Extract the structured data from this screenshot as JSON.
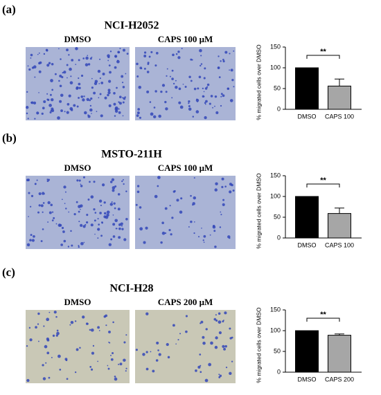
{
  "panels": [
    {
      "label": "(a)",
      "title": "NCI-H2052",
      "images": [
        "DMSO",
        "CAPS 100 μM"
      ]
    },
    {
      "label": "(b)",
      "title": "MSTO-211H",
      "images": [
        "DMSO",
        "CAPS 100 μM"
      ]
    },
    {
      "label": "(c)",
      "title": "NCI-H28",
      "images": [
        "DMSO",
        "CAPS 200 μM"
      ]
    }
  ],
  "chart_data": [
    {
      "type": "bar",
      "ylabel": "% migrated cells over DMSO",
      "categories": [
        "DMSO",
        "CAPS 100"
      ],
      "values": [
        100,
        56
      ],
      "errors": [
        0,
        17
      ],
      "colors": [
        "#000000",
        "#a6a6a6"
      ],
      "ylim": [
        0,
        150
      ],
      "yticks": [
        0,
        50,
        100,
        150
      ],
      "annotation": "**"
    },
    {
      "type": "bar",
      "ylabel": "% migrated cells over DMSO",
      "categories": [
        "DMSO",
        "CAPS 100"
      ],
      "values": [
        100,
        59
      ],
      "errors": [
        0,
        13
      ],
      "colors": [
        "#000000",
        "#a6a6a6"
      ],
      "ylim": [
        0,
        150
      ],
      "yticks": [
        0,
        50,
        100,
        150
      ],
      "annotation": "**"
    },
    {
      "type": "bar",
      "ylabel": "% migrated cells over DMSO",
      "categories": [
        "DMSO",
        "CAPS 200"
      ],
      "values": [
        100,
        89
      ],
      "errors": [
        0,
        3
      ],
      "colors": [
        "#000000",
        "#a6a6a6"
      ],
      "ylim": [
        0,
        150
      ],
      "yticks": [
        0,
        50,
        100,
        150
      ],
      "annotation": "**"
    }
  ]
}
